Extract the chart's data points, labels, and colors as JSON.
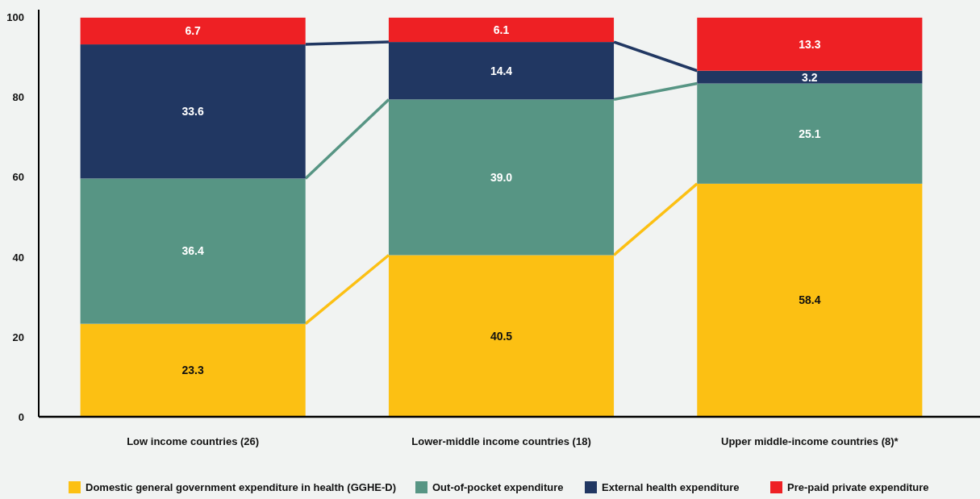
{
  "chart_data": {
    "type": "bar",
    "stacked": true,
    "categories": [
      "Low income countries (26)",
      "Lower-middle income countries (18)",
      "Upper middle-income countries (8)*"
    ],
    "series": [
      {
        "name": "Domestic general government expenditure in health (GGHE-D)",
        "color": "#fcc013",
        "values": [
          23.3,
          40.5,
          58.4
        ]
      },
      {
        "name": "Out-of-pocket expenditure",
        "color": "#579584",
        "values": [
          36.4,
          39.0,
          25.1
        ]
      },
      {
        "name": "External health expenditure",
        "color": "#213762",
        "values": [
          33.6,
          14.4,
          3.2
        ]
      },
      {
        "name": "Pre-paid private expenditure",
        "color": "#ee2024",
        "values": [
          6.7,
          6.1,
          13.3
        ]
      }
    ],
    "value_labels": [
      [
        "23.3",
        "40.5",
        "58.4"
      ],
      [
        "36.4",
        "39.0",
        "25.1"
      ],
      [
        "33.6",
        "14.4",
        "3.2"
      ],
      [
        "6.7",
        "6.1",
        "13.3"
      ]
    ],
    "ylim": [
      0,
      102
    ],
    "yticks": [
      0,
      20,
      40,
      60,
      80,
      100
    ],
    "grid": false,
    "legend": "bottom"
  }
}
